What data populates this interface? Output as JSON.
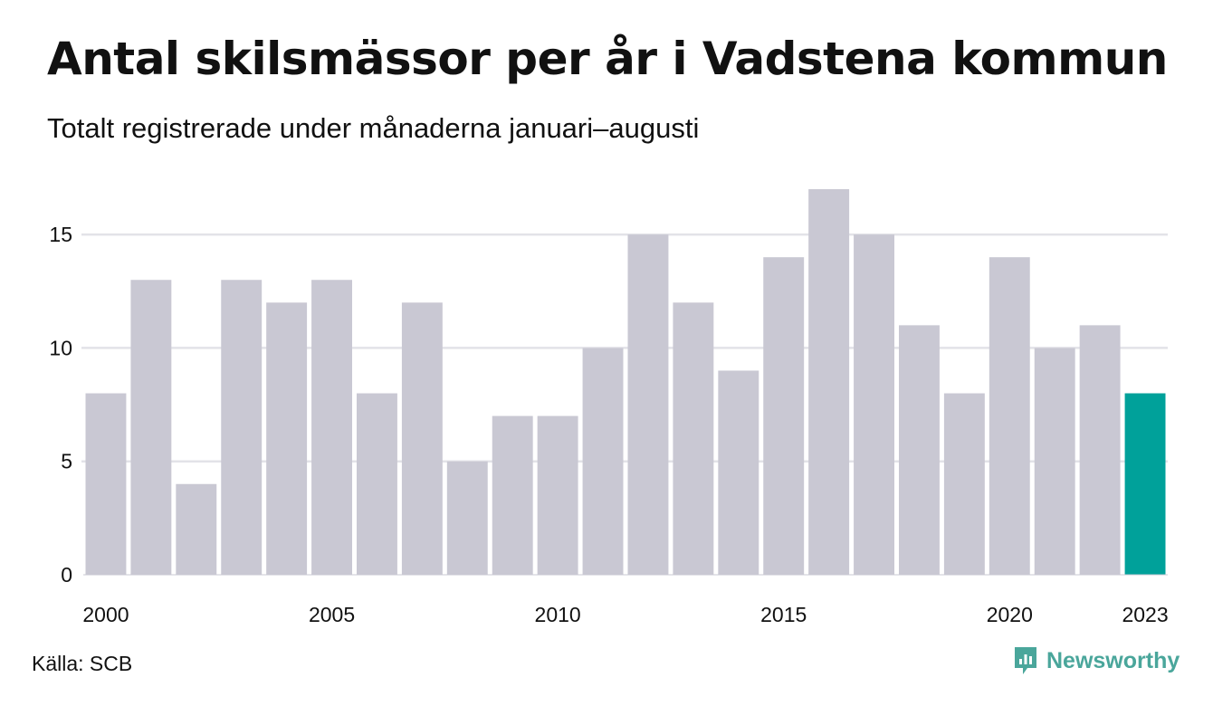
{
  "title": "Antal skilsmässor per år i Vadstena kommun",
  "subtitle": "Totalt registrerade under månaderna januari–augusti",
  "source": "Källa: SCB",
  "brand": {
    "name": "Newsworthy",
    "icon": "newsworthy-logo-icon",
    "color": "#4aa69b"
  },
  "colors": {
    "bar_default": "#c9c8d3",
    "bar_highlight": "#00a19a",
    "grid": "#e3e3e8",
    "text": "#111111"
  },
  "chart_data": {
    "type": "bar",
    "title": "Antal skilsmässor per år i Vadstena kommun",
    "subtitle": "Totalt registrerade under månaderna januari–augusti",
    "xlabel": "",
    "ylabel": "",
    "categories": [
      "2000",
      "2001",
      "2002",
      "2003",
      "2004",
      "2005",
      "2006",
      "2007",
      "2008",
      "2009",
      "2010",
      "2011",
      "2012",
      "2013",
      "2014",
      "2015",
      "2016",
      "2017",
      "2018",
      "2019",
      "2020",
      "2021",
      "2022",
      "2023"
    ],
    "values": [
      8,
      13,
      4,
      13,
      12,
      13,
      8,
      12,
      5,
      7,
      7,
      10,
      15,
      12,
      9,
      14,
      17,
      15,
      11,
      8,
      14,
      10,
      11,
      8
    ],
    "highlight": "2023",
    "ylim": [
      0,
      17
    ],
    "yticks": [
      0,
      5,
      10,
      15
    ],
    "xtick_labels": [
      "2000",
      "2005",
      "2010",
      "2015",
      "2020",
      "2023"
    ],
    "grid": true,
    "legend": "none"
  }
}
